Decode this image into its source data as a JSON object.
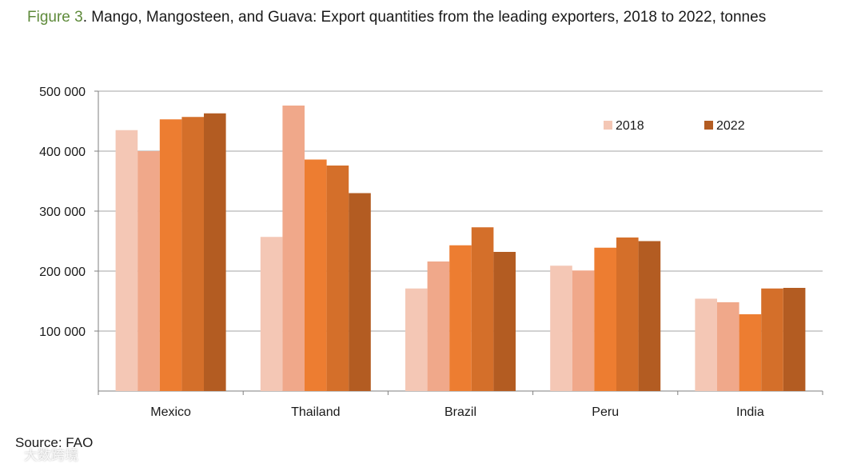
{
  "title": {
    "figure_label": "Figure 3",
    "text": ". Mango, Mangosteen, and Guava: Export quantities from the leading exporters, 2018 to 2022, tonnes"
  },
  "source": "Source: FAO",
  "watermark": "大数跨境",
  "colors": {
    "title_label": "#5e8a3a",
    "gridline": "#a6a6a6",
    "axis": "#7f7f7f"
  },
  "chart_data": {
    "type": "bar",
    "categories": [
      "Mexico",
      "Thailand",
      "Brazil",
      "Peru",
      "India"
    ],
    "series": [
      {
        "name": "2018",
        "color": "#f4c7b5",
        "values": [
          435000,
          257000,
          171000,
          209000,
          154000
        ]
      },
      {
        "color": "#f0a88a",
        "values": [
          400000,
          476000,
          216000,
          201000,
          148000
        ]
      },
      {
        "color": "#ed7d31",
        "values": [
          453000,
          386000,
          243000,
          239000,
          128000
        ]
      },
      {
        "color": "#d46f2a",
        "values": [
          457000,
          376000,
          273000,
          256000,
          171000
        ]
      },
      {
        "name": "2022",
        "color": "#b35c22",
        "values": [
          463000,
          330000,
          232000,
          250000,
          172000
        ]
      }
    ],
    "ylim": [
      0,
      500000
    ],
    "yticks": [
      100000,
      200000,
      300000,
      400000,
      500000
    ],
    "ytick_labels": [
      "100 000",
      "200 000",
      "300 000",
      "400 000",
      "500 000"
    ],
    "grid": true,
    "legend": {
      "placement": "top-right",
      "entries": [
        {
          "label": "2018",
          "series_index": 0
        },
        {
          "label": "2022",
          "series_index": 4
        }
      ]
    }
  }
}
